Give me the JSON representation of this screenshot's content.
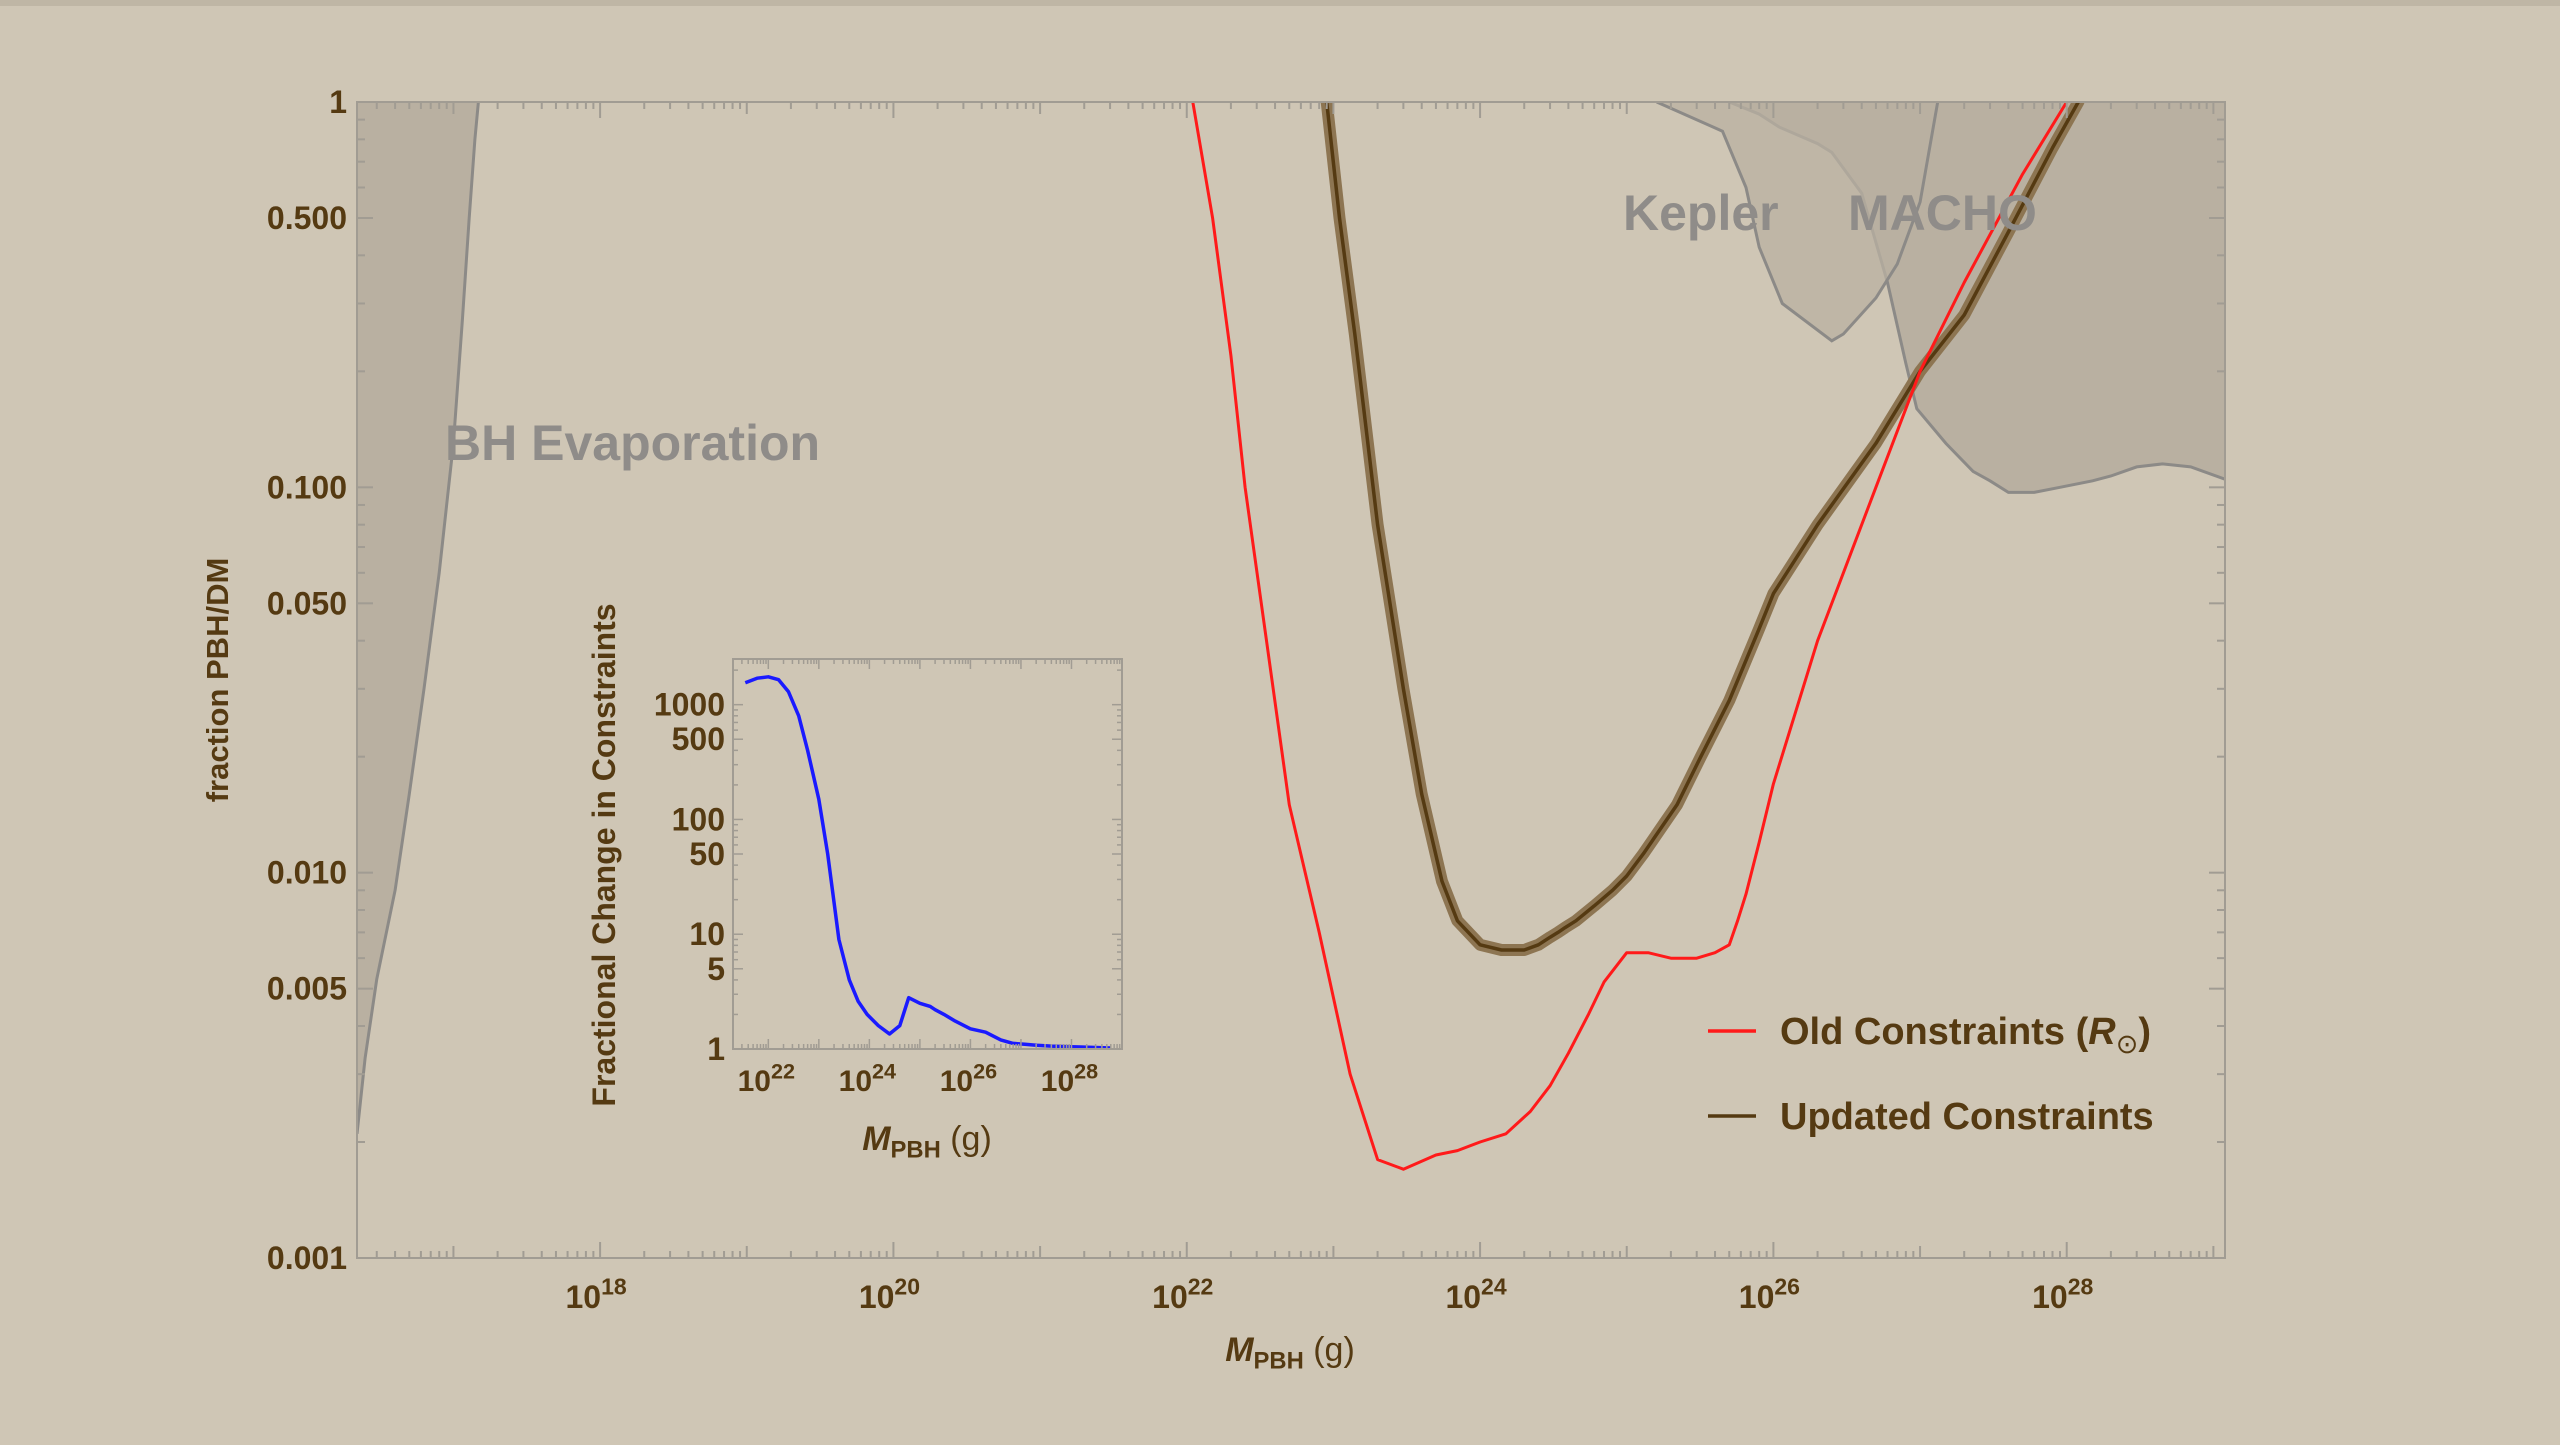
{
  "colors": {
    "background": "#cfc6b5",
    "plot_background": "#cfc6b5",
    "excluded_fill": "#b9b0a1",
    "excluded_edge": "#8c8a87",
    "old_line": "#ff1a1a",
    "updated_line": "#553a12",
    "updated_band": "#8d7552",
    "inset_line": "#1a1aff",
    "text": "#553a12",
    "region_label": "#8f8c89",
    "axis": "#a19c93"
  },
  "chart_data": [
    {
      "type": "line",
      "xlabel_main": "M",
      "xlabel_sub": "PBH",
      "xlabel_unit": " (g)",
      "ylabel": "fraction PBH/DM",
      "x_scale": "log",
      "y_scale": "log",
      "xlim": [
        2.2e+16,
        1.2e+29
      ],
      "ylim": [
        0.001,
        1
      ],
      "x_ticks": [
        {
          "value": 1e+18,
          "base": "10",
          "exp": "18"
        },
        {
          "value": 1e+20,
          "base": "10",
          "exp": "20"
        },
        {
          "value": 1e+22,
          "base": "10",
          "exp": "22"
        },
        {
          "value": 1e+24,
          "base": "10",
          "exp": "24"
        },
        {
          "value": 1e+26,
          "base": "10",
          "exp": "26"
        },
        {
          "value": 1e+28,
          "base": "10",
          "exp": "28"
        }
      ],
      "y_ticks": [
        {
          "value": 0.001,
          "label": "0.001"
        },
        {
          "value": 0.005,
          "label": "0.005"
        },
        {
          "value": 0.01,
          "label": "0.010"
        },
        {
          "value": 0.05,
          "label": "0.050"
        },
        {
          "value": 0.1,
          "label": "0.100"
        },
        {
          "value": 0.5,
          "label": "0.500"
        },
        {
          "value": 1,
          "label": "1"
        }
      ],
      "legend": {
        "placement": "lower-right",
        "entries": [
          {
            "name": "Old Constraints (",
            "symbol": "R",
            "sub": "⊙",
            "close": ")",
            "color": "#ff1a1a"
          },
          {
            "name": "Updated Constraints",
            "color": "#553a12"
          }
        ]
      },
      "regions": [
        {
          "name": "BH Evaporation",
          "points": [
            [
              2.2e+16,
              0.0021
            ],
            [
              2.5e+16,
              0.0033
            ],
            [
              3e+16,
              0.0053
            ],
            [
              4e+16,
              0.009
            ],
            [
              5e+16,
              0.016
            ],
            [
              6.3e+16,
              0.03
            ],
            [
              8e+16,
              0.06
            ],
            [
              1e+17,
              0.13
            ],
            [
              1.15e+17,
              0.27
            ],
            [
              1.28e+17,
              0.5
            ],
            [
              1.4e+17,
              0.8
            ],
            [
              1.48e+17,
              1
            ]
          ]
        },
        {
          "name": "Kepler",
          "points": [
            [
              1.6e+25,
              1
            ],
            [
              4.5e+25,
              0.84
            ],
            [
              6.5e+25,
              0.6
            ],
            [
              8e+25,
              0.42
            ],
            [
              1.15e+26,
              0.3
            ],
            [
              2.5e+26,
              0.24
            ],
            [
              3e+26,
              0.25
            ],
            [
              5e+26,
              0.31
            ],
            [
              7e+26,
              0.38
            ],
            [
              1e+27,
              0.55
            ],
            [
              1.32e+27,
              1
            ]
          ]
        },
        {
          "name": "MACHO",
          "points": [
            [
              5e+25,
              1
            ],
            [
              8e+25,
              0.93
            ],
            [
              1.1e+26,
              0.86
            ],
            [
              2e+26,
              0.78
            ],
            [
              2.5e+26,
              0.74
            ],
            [
              4e+26,
              0.58
            ],
            [
              6e+26,
              0.34
            ],
            [
              8e+26,
              0.21
            ],
            [
              9.5e+26,
              0.16
            ],
            [
              1.5e+27,
              0.13
            ],
            [
              2.3e+27,
              0.11
            ],
            [
              3e+27,
              0.104
            ],
            [
              4e+27,
              0.097
            ],
            [
              6e+27,
              0.097
            ],
            [
              9e+27,
              0.1
            ],
            [
              1.5e+28,
              0.104
            ],
            [
              2e+28,
              0.107
            ],
            [
              3e+28,
              0.113
            ],
            [
              4.5e+28,
              0.115
            ],
            [
              7e+28,
              0.113
            ],
            [
              1.2e+29,
              0.105
            ]
          ]
        }
      ],
      "series": [
        {
          "name": "Old Constraints",
          "x": [
            1.1e+22,
            1.5e+22,
            2e+22,
            2.5e+22,
            3.5e+22,
            5e+22,
            8e+22,
            1.3e+23,
            2e+23,
            3e+23,
            5e+23,
            7e+23,
            1e+24,
            1.5e+24,
            2.2e+24,
            3e+24,
            4e+24,
            5.5e+24,
            7e+24,
            1e+25,
            1.4e+25,
            2e+25,
            3e+25,
            4e+25,
            5e+25,
            5.7e+25,
            6.5e+25,
            8e+25,
            1e+26,
            2e+26,
            5e+26,
            1e+27,
            2e+27,
            5e+27,
            1e+28,
            1.6e+28
          ],
          "y": [
            1,
            0.5,
            0.22,
            0.1,
            0.04,
            0.015,
            0.007,
            0.003,
            0.0018,
            0.0017,
            0.00185,
            0.0019,
            0.002,
            0.0021,
            0.0024,
            0.0028,
            0.0034,
            0.0043,
            0.0052,
            0.0062,
            0.0062,
            0.006,
            0.006,
            0.0062,
            0.0065,
            0.0075,
            0.0088,
            0.012,
            0.017,
            0.04,
            0.1,
            0.2,
            0.34,
            0.65,
            1,
            1.3
          ]
        },
        {
          "name": "Updated Constraints",
          "x": [
            9e+22,
            1.1e+23,
            1.4e+23,
            2e+23,
            3e+23,
            4e+23,
            5.5e+23,
            7e+23,
            1e+24,
            1.4e+24,
            2e+24,
            2.5e+24,
            3e+24,
            3.4e+24,
            3.8e+24,
            4.5e+24,
            6e+24,
            8e+24,
            1e+25,
            1.3e+25,
            1.7e+25,
            2.2e+25,
            3.2e+25,
            5e+25,
            8e+25,
            1e+26,
            2e+26,
            5e+26,
            1e+27,
            2e+27,
            4e+27,
            8e+27,
            1.2e+28,
            1.6e+28
          ],
          "y": [
            1,
            0.5,
            0.25,
            0.08,
            0.03,
            0.016,
            0.0095,
            0.0075,
            0.0065,
            0.0063,
            0.0063,
            0.0065,
            0.0068,
            0.007,
            0.0072,
            0.0075,
            0.0082,
            0.009,
            0.0098,
            0.0112,
            0.013,
            0.015,
            0.02,
            0.028,
            0.043,
            0.053,
            0.08,
            0.13,
            0.2,
            0.28,
            0.46,
            0.76,
            1,
            1.3
          ]
        }
      ]
    },
    {
      "type": "line",
      "inset": true,
      "xlabel_main": "M",
      "xlabel_sub": "PBH",
      "xlabel_unit": " (g)",
      "ylabel": "Fractional Change in Constraints",
      "x_scale": "log",
      "y_scale": "log",
      "xlim": [
        2e+21,
        1e+29
      ],
      "ylim": [
        1,
        2500
      ],
      "x_ticks": [
        {
          "value": 1e+22,
          "base": "10",
          "exp": "22"
        },
        {
          "value": 1e+24,
          "base": "10",
          "exp": "24"
        },
        {
          "value": 1e+26,
          "base": "10",
          "exp": "26"
        },
        {
          "value": 1e+28,
          "base": "10",
          "exp": "28"
        }
      ],
      "y_ticks": [
        {
          "value": 1,
          "label": "1"
        },
        {
          "value": 5,
          "label": "5"
        },
        {
          "value": 10,
          "label": "10"
        },
        {
          "value": 50,
          "label": "50"
        },
        {
          "value": 100,
          "label": "100"
        },
        {
          "value": 500,
          "label": "500"
        },
        {
          "value": 1000,
          "label": "1000"
        }
      ],
      "series": [
        {
          "name": "",
          "x": [
            3.5e+21,
            6e+21,
            1e+22,
            1.6e+22,
            2.5e+22,
            4e+22,
            6e+22,
            1e+23,
            1.5e+23,
            2.5e+23,
            4e+23,
            6e+23,
            9e+23,
            1.5e+24,
            2.5e+24,
            4e+24,
            6e+24,
            1e+25,
            1.6e+25,
            2e+25,
            3e+25,
            5e+25,
            1e+26,
            2e+26,
            4e+26,
            7e+26,
            1.2e+27,
            2e+27,
            4e+27,
            8e+27,
            1.5e+28,
            3e+28,
            6e+28
          ],
          "y": [
            1550,
            1700,
            1750,
            1650,
            1300,
            800,
            400,
            150,
            50,
            9,
            4,
            2.6,
            2,
            1.6,
            1.35,
            1.6,
            2.8,
            2.5,
            2.35,
            2.2,
            2,
            1.75,
            1.5,
            1.4,
            1.2,
            1.12,
            1.1,
            1.08,
            1.06,
            1.05,
            1.04,
            1.03,
            1.02
          ]
        }
      ]
    }
  ]
}
